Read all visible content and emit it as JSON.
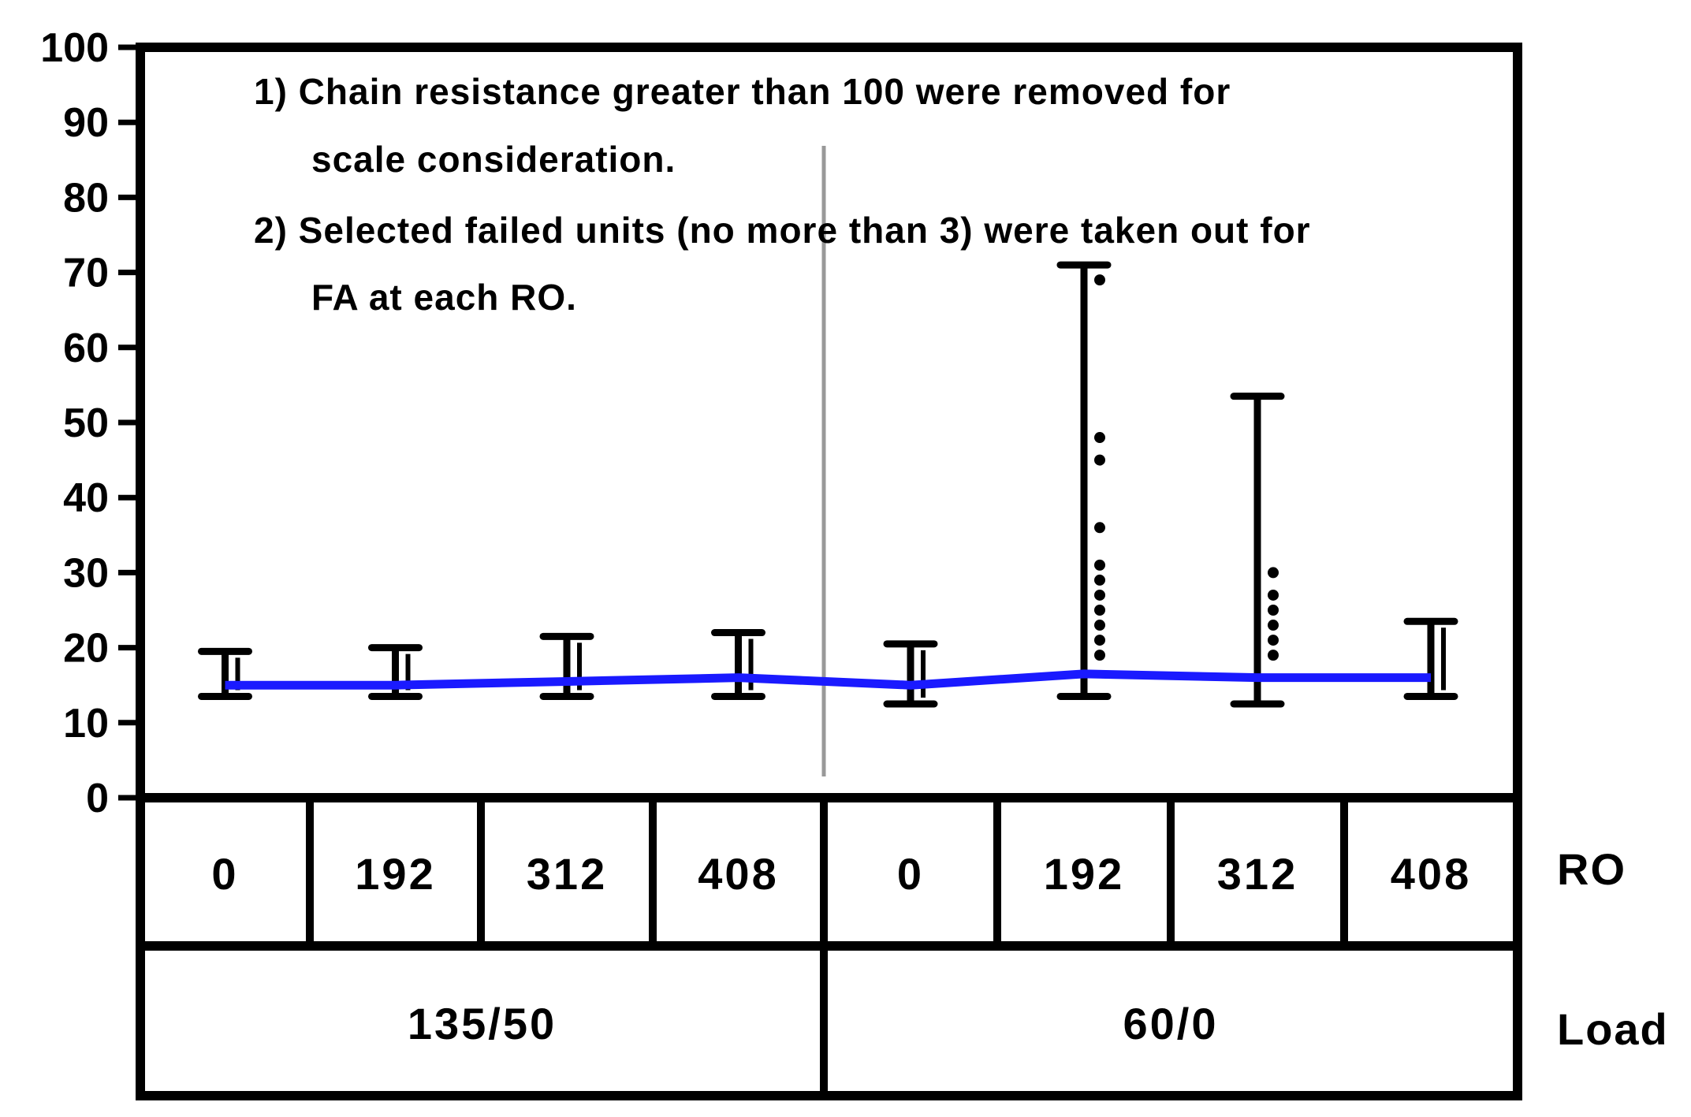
{
  "chart_data": {
    "type": "variability",
    "yaxis": {
      "ylim": [
        0,
        100
      ],
      "ticks": [
        0,
        10,
        20,
        30,
        40,
        50,
        60,
        70,
        80,
        90,
        100
      ]
    },
    "notes": [
      "1) Chain resistance greater than 100 were removed for",
      "scale consideration.",
      "2) Selected failed units (no more than 3) were taken out for",
      "FA at each RO."
    ],
    "table": {
      "ro_label": "RO",
      "load_label": "Load",
      "ro_values": [
        "0",
        "192",
        "312",
        "408",
        "0",
        "192",
        "312",
        "408"
      ],
      "load_values": [
        "135/50",
        "60/0"
      ]
    },
    "groups": [
      {
        "load": "135/50",
        "ro": "0",
        "min": 13.5,
        "max": 19.5,
        "mean": 15.0
      },
      {
        "load": "135/50",
        "ro": "192",
        "min": 13.5,
        "max": 20.0,
        "mean": 15.0
      },
      {
        "load": "135/50",
        "ro": "312",
        "min": 13.5,
        "max": 21.5,
        "mean": 15.5
      },
      {
        "load": "135/50",
        "ro": "408",
        "min": 13.5,
        "max": 22.0,
        "mean": 16.0
      },
      {
        "load": "60/0",
        "ro": "0",
        "min": 12.5,
        "max": 20.5,
        "mean": 15.0
      },
      {
        "load": "60/0",
        "ro": "192",
        "min": 13.5,
        "max": 71.0,
        "mean": 16.5,
        "outliers": [
          69,
          48,
          45,
          36,
          31,
          29,
          27,
          25,
          23,
          21,
          19
        ]
      },
      {
        "load": "60/0",
        "ro": "312",
        "min": 12.5,
        "max": 53.5,
        "mean": 16.0,
        "outliers": [
          30,
          27,
          25,
          23,
          21,
          19
        ]
      },
      {
        "load": "60/0",
        "ro": "408",
        "min": 13.5,
        "max": 23.5,
        "mean": 16.0
      }
    ],
    "mean_line_color": "#1a1aff",
    "bar_color": "#000000",
    "grid": false
  }
}
